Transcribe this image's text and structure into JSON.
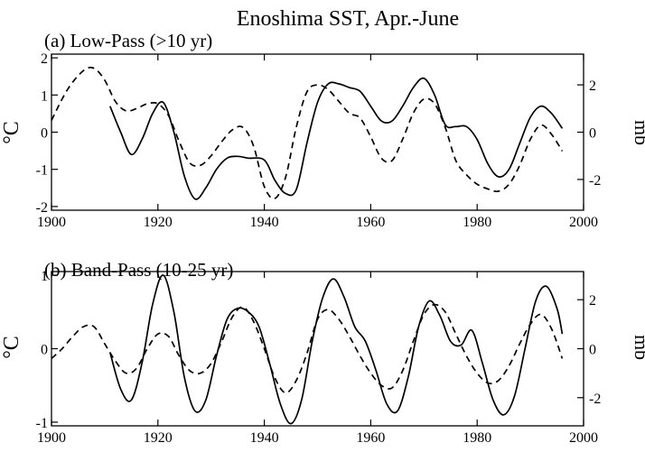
{
  "title": "Enoshima SST, Apr.-June",
  "chart_data": [
    {
      "type": "line",
      "panel_label": "(a) Low-Pass (>10 yr)",
      "ylabel_left": "°C",
      "ylabel_right": "mb",
      "xlim": [
        1900,
        2000
      ],
      "xticks": [
        1900,
        1920,
        1940,
        1960,
        1980,
        2000
      ],
      "ylim_left": [
        -2.1,
        2.1
      ],
      "yticks_left": [
        -2,
        -1,
        0,
        1,
        2
      ],
      "ylim_right": [
        -3.3,
        3.3
      ],
      "yticks_right": [
        -2,
        0,
        2
      ],
      "grid": false,
      "series": [
        {
          "style": "solid",
          "axis": "left",
          "x": [
            1911,
            1913,
            1915,
            1917,
            1919,
            1921,
            1923,
            1925,
            1927,
            1929,
            1931,
            1933,
            1935,
            1937,
            1940,
            1942,
            1944,
            1946,
            1948,
            1950,
            1952,
            1954,
            1956,
            1958,
            1960,
            1962,
            1964,
            1966,
            1968,
            1970,
            1972,
            1974,
            1976,
            1978,
            1980,
            1982,
            1984,
            1986,
            1988,
            1990,
            1992,
            1994,
            1996
          ],
          "y": [
            0.7,
            0.0,
            -0.6,
            -0.2,
            0.5,
            0.8,
            0.0,
            -1.2,
            -1.8,
            -1.5,
            -1.0,
            -0.7,
            -0.65,
            -0.7,
            -0.75,
            -1.3,
            -1.65,
            -1.55,
            -0.3,
            0.8,
            1.3,
            1.3,
            1.2,
            1.1,
            0.7,
            0.3,
            0.3,
            0.7,
            1.2,
            1.45,
            1.0,
            0.2,
            0.15,
            0.15,
            -0.2,
            -0.85,
            -1.2,
            -1.0,
            -0.3,
            0.4,
            0.7,
            0.5,
            0.1
          ]
        },
        {
          "style": "dashed",
          "axis": "right",
          "x": [
            1900,
            1903,
            1906,
            1908,
            1910,
            1912,
            1914,
            1916,
            1918,
            1920,
            1922,
            1924,
            1926,
            1928,
            1930,
            1932,
            1934,
            1936,
            1938,
            1940,
            1942,
            1944,
            1946,
            1948,
            1950,
            1952,
            1954,
            1956,
            1958,
            1960,
            1962,
            1964,
            1966,
            1968,
            1970,
            1972,
            1974,
            1976,
            1978,
            1980,
            1982,
            1984,
            1986,
            1988,
            1990,
            1992,
            1994,
            1996
          ],
          "y": [
            0.5,
            1.8,
            2.6,
            2.7,
            2.2,
            1.3,
            0.9,
            1.0,
            1.2,
            1.2,
            0.7,
            -0.4,
            -1.3,
            -1.4,
            -1.0,
            -0.4,
            0.1,
            0.2,
            -0.6,
            -2.3,
            -2.8,
            -1.9,
            0.2,
            1.7,
            2.0,
            1.8,
            1.3,
            0.8,
            0.6,
            -0.2,
            -1.1,
            -1.2,
            -0.3,
            0.8,
            1.4,
            1.2,
            0.2,
            -1.2,
            -1.8,
            -2.2,
            -2.4,
            -2.5,
            -2.2,
            -1.4,
            -0.3,
            0.3,
            -0.1,
            -0.8
          ]
        }
      ]
    },
    {
      "type": "line",
      "panel_label": "(b) Band-Pass (10-25 yr)",
      "ylabel_left": "°C",
      "ylabel_right": "mb",
      "xlim": [
        1900,
        2000
      ],
      "xticks": [
        1900,
        1920,
        1940,
        1960,
        1980,
        2000
      ],
      "ylim_left": [
        -1.05,
        1.05
      ],
      "yticks_left": [
        -1,
        0,
        1
      ],
      "ylim_right": [
        -3.15,
        3.15
      ],
      "yticks_right": [
        -2,
        0,
        2
      ],
      "grid": false,
      "series": [
        {
          "style": "solid",
          "axis": "left",
          "x": [
            1911,
            1913,
            1915,
            1917,
            1919,
            1921,
            1923,
            1925,
            1927,
            1929,
            1931,
            1933,
            1935,
            1937,
            1939,
            1941,
            1943,
            1945,
            1947,
            1949,
            1951,
            1953,
            1955,
            1957,
            1959,
            1961,
            1963,
            1965,
            1967,
            1969,
            1971,
            1973,
            1975,
            1977,
            1979,
            1981,
            1983,
            1985,
            1987,
            1989,
            1991,
            1993,
            1995,
            1996
          ],
          "y": [
            -0.05,
            -0.55,
            -0.7,
            -0.2,
            0.6,
            1.0,
            0.5,
            -0.4,
            -0.85,
            -0.7,
            -0.1,
            0.4,
            0.55,
            0.5,
            0.3,
            -0.2,
            -0.75,
            -1.02,
            -0.7,
            0.1,
            0.7,
            0.95,
            0.7,
            0.3,
            0.1,
            -0.3,
            -0.75,
            -0.85,
            -0.4,
            0.3,
            0.65,
            0.45,
            0.1,
            0.05,
            0.25,
            -0.2,
            -0.7,
            -0.9,
            -0.65,
            0.0,
            0.65,
            0.85,
            0.55,
            0.2
          ]
        },
        {
          "style": "dashed",
          "axis": "right",
          "x": [
            1900,
            1902,
            1904,
            1906,
            1908,
            1910,
            1912,
            1914,
            1916,
            1918,
            1920,
            1922,
            1924,
            1926,
            1928,
            1930,
            1932,
            1934,
            1936,
            1938,
            1940,
            1942,
            1944,
            1946,
            1948,
            1950,
            1952,
            1954,
            1956,
            1958,
            1960,
            1962,
            1964,
            1966,
            1968,
            1970,
            1972,
            1974,
            1976,
            1978,
            1980,
            1982,
            1984,
            1986,
            1988,
            1990,
            1992,
            1994,
            1996
          ],
          "y": [
            -0.4,
            0.0,
            0.5,
            0.9,
            0.9,
            0.2,
            -0.5,
            -1.0,
            -0.8,
            0.0,
            0.6,
            0.5,
            -0.3,
            -0.9,
            -1.0,
            -0.6,
            0.3,
            1.3,
            1.7,
            1.1,
            0.0,
            -1.2,
            -1.8,
            -1.3,
            -0.2,
            1.2,
            1.6,
            1.2,
            0.5,
            -0.3,
            -1.0,
            -1.5,
            -1.6,
            -0.9,
            0.3,
            1.4,
            1.8,
            1.5,
            0.6,
            -0.3,
            -1.0,
            -1.4,
            -1.3,
            -0.7,
            0.2,
            1.0,
            1.4,
            0.8,
            -0.4
          ]
        }
      ]
    }
  ]
}
